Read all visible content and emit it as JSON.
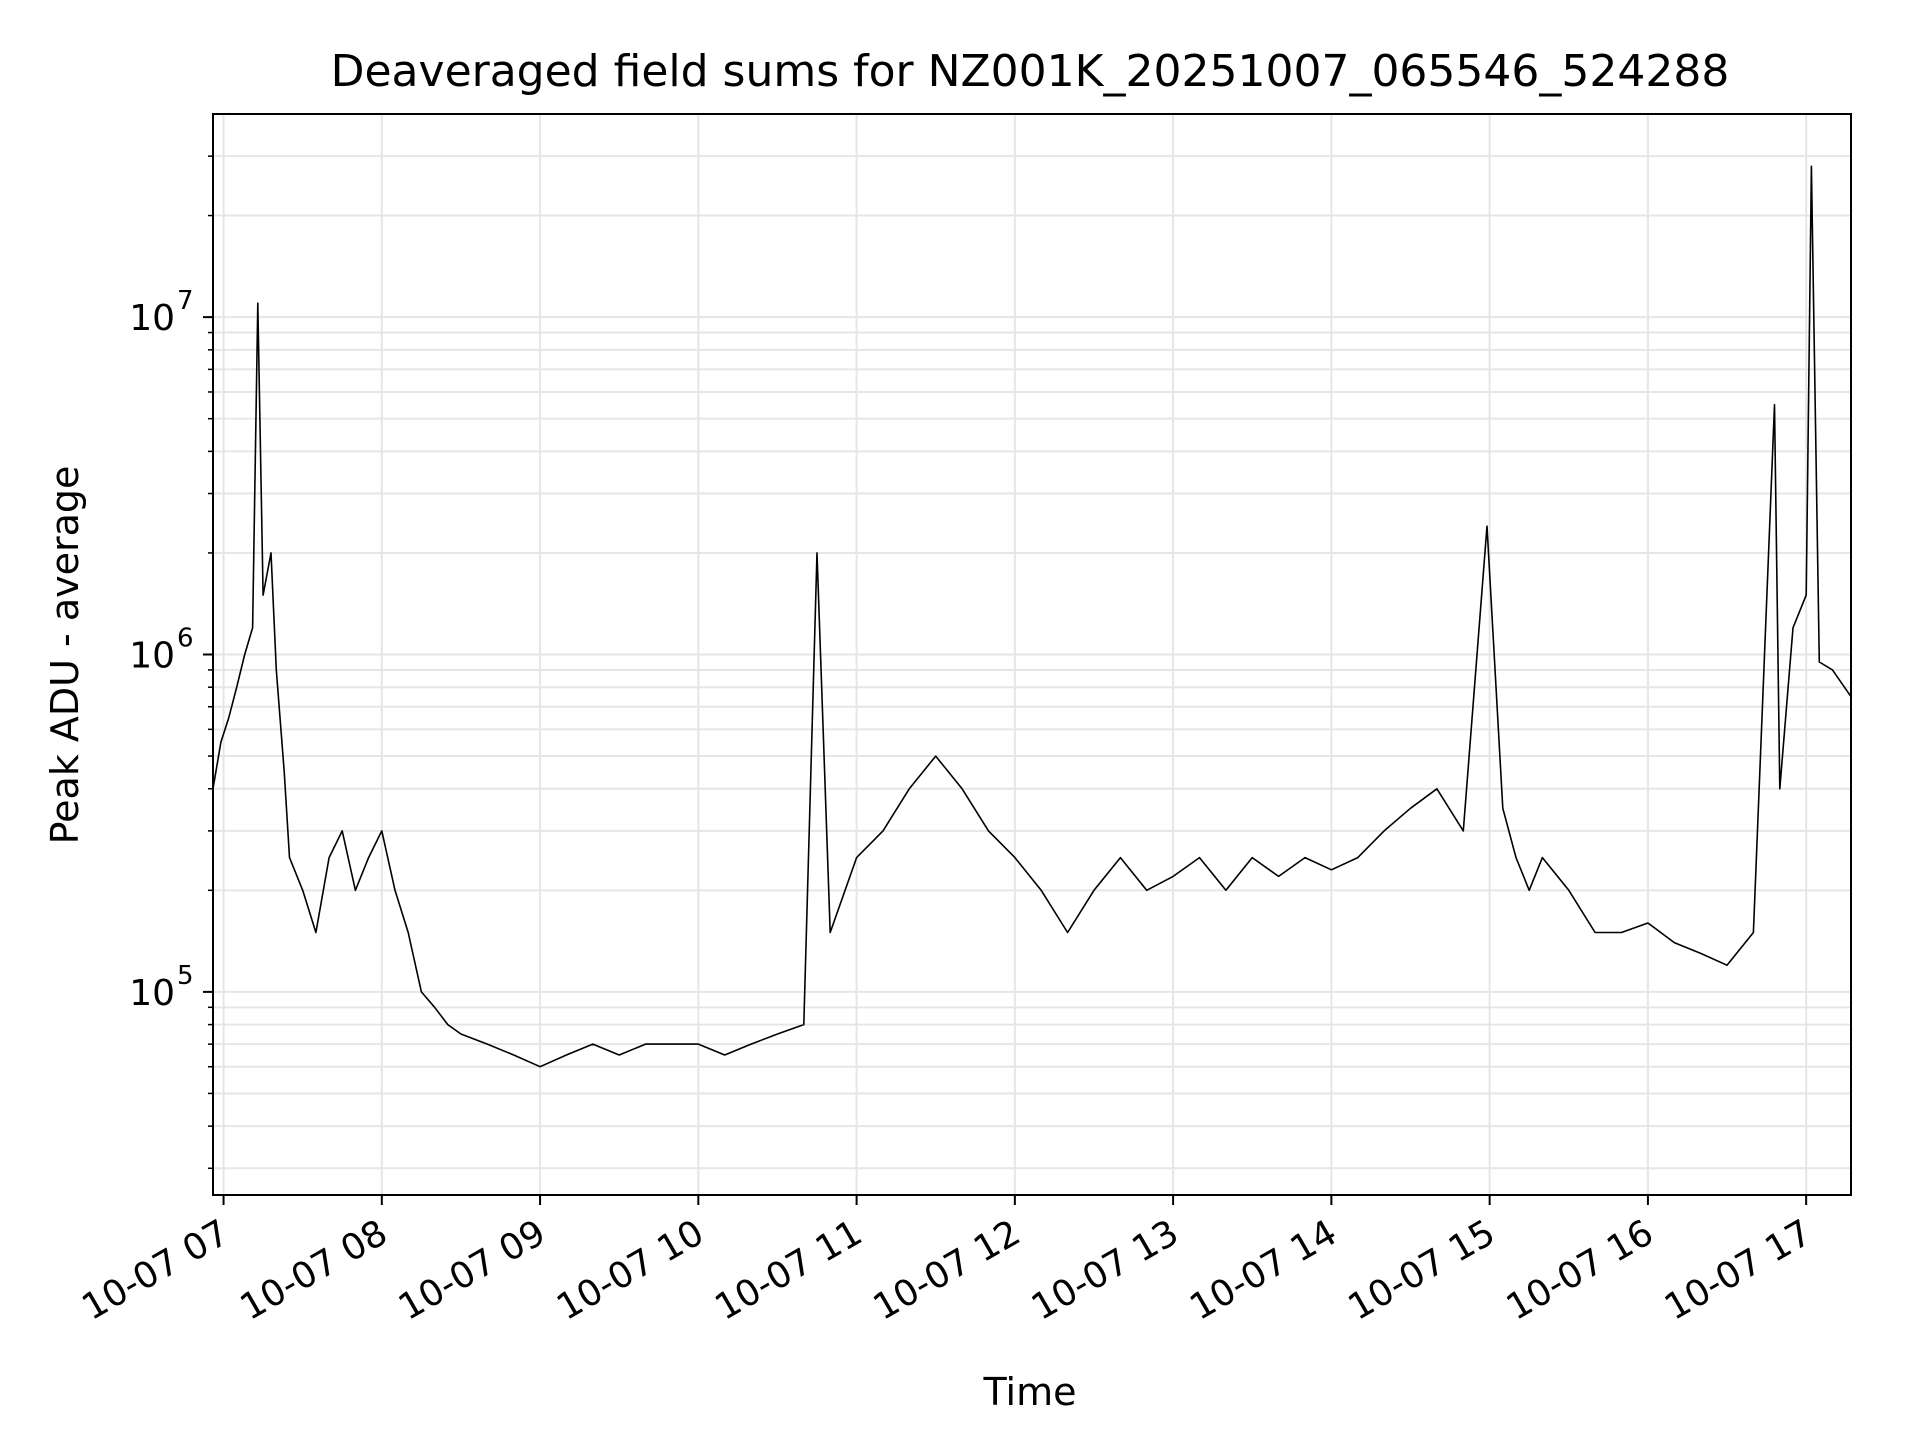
{
  "chart_data": {
    "type": "line",
    "title": "Deaveraged field sums for NZ001K_20251007_065546_524288",
    "xlabel": "Time",
    "ylabel": "Peak ADU - average",
    "yscale": "log",
    "grid": true,
    "grid_minor": true,
    "line_color": "#000000",
    "grid_color": "#e6e6e6",
    "xlim": [
      "2025-10-07 06:56",
      "2025-10-07 17:17"
    ],
    "ylim": [
      25000,
      40000000
    ],
    "x_ticks": [
      {
        "value": "2025-10-07 07:00",
        "label": "10-07 07"
      },
      {
        "value": "2025-10-07 08:00",
        "label": "10-07 08"
      },
      {
        "value": "2025-10-07 09:00",
        "label": "10-07 09"
      },
      {
        "value": "2025-10-07 10:00",
        "label": "10-07 10"
      },
      {
        "value": "2025-10-07 11:00",
        "label": "10-07 11"
      },
      {
        "value": "2025-10-07 12:00",
        "label": "10-07 12"
      },
      {
        "value": "2025-10-07 13:00",
        "label": "10-07 13"
      },
      {
        "value": "2025-10-07 14:00",
        "label": "10-07 14"
      },
      {
        "value": "2025-10-07 15:00",
        "label": "10-07 15"
      },
      {
        "value": "2025-10-07 16:00",
        "label": "10-07 16"
      },
      {
        "value": "2025-10-07 17:00",
        "label": "10-07 17"
      }
    ],
    "y_ticks": [
      {
        "value": 100000,
        "base": "10",
        "exp": "5"
      },
      {
        "value": 1000000,
        "base": "10",
        "exp": "6"
      },
      {
        "value": 10000000,
        "base": "10",
        "exp": "7"
      }
    ],
    "series": [
      {
        "points": [
          [
            "2025-10-07 06:56",
            400000
          ],
          [
            "2025-10-07 06:59",
            550000
          ],
          [
            "2025-10-07 07:02",
            650000
          ],
          [
            "2025-10-07 07:05",
            800000
          ],
          [
            "2025-10-07 07:08",
            1000000
          ],
          [
            "2025-10-07 07:11",
            1200000
          ],
          [
            "2025-10-07 07:13",
            11000000
          ],
          [
            "2025-10-07 07:15",
            1500000
          ],
          [
            "2025-10-07 07:18",
            2000000
          ],
          [
            "2025-10-07 07:20",
            900000
          ],
          [
            "2025-10-07 07:23",
            450000
          ],
          [
            "2025-10-07 07:25",
            250000
          ],
          [
            "2025-10-07 07:30",
            200000
          ],
          [
            "2025-10-07 07:35",
            150000
          ],
          [
            "2025-10-07 07:40",
            250000
          ],
          [
            "2025-10-07 07:45",
            300000
          ],
          [
            "2025-10-07 07:50",
            200000
          ],
          [
            "2025-10-07 07:55",
            250000
          ],
          [
            "2025-10-07 08:00",
            300000
          ],
          [
            "2025-10-07 08:05",
            200000
          ],
          [
            "2025-10-07 08:10",
            150000
          ],
          [
            "2025-10-07 08:15",
            100000
          ],
          [
            "2025-10-07 08:20",
            90000
          ],
          [
            "2025-10-07 08:25",
            80000
          ],
          [
            "2025-10-07 08:30",
            75000
          ],
          [
            "2025-10-07 08:40",
            70000
          ],
          [
            "2025-10-07 08:50",
            65000
          ],
          [
            "2025-10-07 09:00",
            60000
          ],
          [
            "2025-10-07 09:10",
            65000
          ],
          [
            "2025-10-07 09:20",
            70000
          ],
          [
            "2025-10-07 09:30",
            65000
          ],
          [
            "2025-10-07 09:40",
            70000
          ],
          [
            "2025-10-07 09:50",
            70000
          ],
          [
            "2025-10-07 10:00",
            70000
          ],
          [
            "2025-10-07 10:10",
            65000
          ],
          [
            "2025-10-07 10:20",
            70000
          ],
          [
            "2025-10-07 10:30",
            75000
          ],
          [
            "2025-10-07 10:40",
            80000
          ],
          [
            "2025-10-07 10:45",
            2000000
          ],
          [
            "2025-10-07 10:50",
            150000
          ],
          [
            "2025-10-07 11:00",
            250000
          ],
          [
            "2025-10-07 11:10",
            300000
          ],
          [
            "2025-10-07 11:20",
            400000
          ],
          [
            "2025-10-07 11:30",
            500000
          ],
          [
            "2025-10-07 11:40",
            400000
          ],
          [
            "2025-10-07 11:50",
            300000
          ],
          [
            "2025-10-07 12:00",
            250000
          ],
          [
            "2025-10-07 12:10",
            200000
          ],
          [
            "2025-10-07 12:20",
            150000
          ],
          [
            "2025-10-07 12:30",
            200000
          ],
          [
            "2025-10-07 12:40",
            250000
          ],
          [
            "2025-10-07 12:50",
            200000
          ],
          [
            "2025-10-07 13:00",
            220000
          ],
          [
            "2025-10-07 13:10",
            250000
          ],
          [
            "2025-10-07 13:20",
            200000
          ],
          [
            "2025-10-07 13:30",
            250000
          ],
          [
            "2025-10-07 13:40",
            220000
          ],
          [
            "2025-10-07 13:50",
            250000
          ],
          [
            "2025-10-07 14:00",
            230000
          ],
          [
            "2025-10-07 14:10",
            250000
          ],
          [
            "2025-10-07 14:20",
            300000
          ],
          [
            "2025-10-07 14:30",
            350000
          ],
          [
            "2025-10-07 14:40",
            400000
          ],
          [
            "2025-10-07 14:50",
            300000
          ],
          [
            "2025-10-07 14:59",
            2400000
          ],
          [
            "2025-10-07 15:05",
            350000
          ],
          [
            "2025-10-07 15:10",
            250000
          ],
          [
            "2025-10-07 15:15",
            200000
          ],
          [
            "2025-10-07 15:20",
            250000
          ],
          [
            "2025-10-07 15:30",
            200000
          ],
          [
            "2025-10-07 15:40",
            150000
          ],
          [
            "2025-10-07 15:50",
            150000
          ],
          [
            "2025-10-07 16:00",
            160000
          ],
          [
            "2025-10-07 16:10",
            140000
          ],
          [
            "2025-10-07 16:20",
            130000
          ],
          [
            "2025-10-07 16:30",
            120000
          ],
          [
            "2025-10-07 16:40",
            150000
          ],
          [
            "2025-10-07 16:48",
            5500000
          ],
          [
            "2025-10-07 16:50",
            400000
          ],
          [
            "2025-10-07 16:55",
            1200000
          ],
          [
            "2025-10-07 17:00",
            1500000
          ],
          [
            "2025-10-07 17:02",
            28000000
          ],
          [
            "2025-10-07 17:05",
            950000
          ],
          [
            "2025-10-07 17:10",
            900000
          ],
          [
            "2025-10-07 17:17",
            750000
          ]
        ]
      }
    ]
  }
}
